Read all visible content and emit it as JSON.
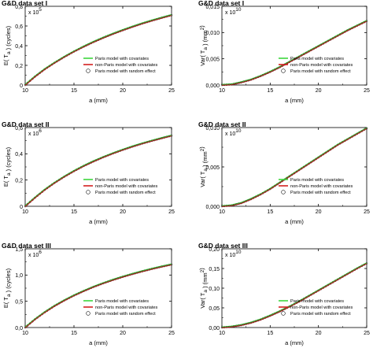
{
  "figure": {
    "legend_labels": [
      "Paris model with covariates",
      "non-Paris model with covariates",
      "Paris model with random effect"
    ],
    "colors": {
      "paris": "#3dd63d",
      "non_paris": "#d42020",
      "random": "#1a1a1a"
    }
  },
  "chart_data": [
    {
      "type": "line",
      "title": "G&D data set I",
      "xlabel": "a  (mm)",
      "ylabel": "E( T_a )  (cycles)",
      "multiplier": "x 10^5",
      "xlim": [
        10,
        25
      ],
      "ylim": [
        0,
        0.8
      ],
      "xticks": [
        "10",
        "15",
        "20",
        "25"
      ],
      "yticks": [
        "0",
        "0,2",
        "0,4",
        "0,6",
        "0,8"
      ],
      "legend": "lower-right",
      "x": [
        10,
        11,
        12,
        13,
        14,
        15,
        16,
        17,
        18,
        19,
        20,
        21,
        22,
        23,
        24,
        25
      ],
      "series": [
        {
          "name": "Paris model with covariates",
          "values": [
            0,
            0.085,
            0.16,
            0.225,
            0.285,
            0.34,
            0.39,
            0.437,
            0.48,
            0.52,
            0.557,
            0.592,
            0.625,
            0.655,
            0.683,
            0.71
          ]
        },
        {
          "name": "non-Paris model with covariates",
          "values": [
            0,
            0.085,
            0.16,
            0.225,
            0.285,
            0.34,
            0.39,
            0.437,
            0.48,
            0.52,
            0.557,
            0.592,
            0.625,
            0.655,
            0.683,
            0.71
          ]
        },
        {
          "name": "Paris model with random effect",
          "values": [
            0,
            0.085,
            0.16,
            0.225,
            0.285,
            0.34,
            0.39,
            0.437,
            0.48,
            0.52,
            0.557,
            0.592,
            0.625,
            0.655,
            0.683,
            0.71
          ]
        }
      ]
    },
    {
      "type": "line",
      "title": "G&D data set I",
      "xlabel": "a  (mm)",
      "ylabel": "Var( T_a )  (mm^2)",
      "multiplier": "x 10^10",
      "xlim": [
        10,
        25
      ],
      "ylim": [
        0,
        0.015
      ],
      "xticks": [
        "10",
        "15",
        "20",
        "25"
      ],
      "yticks": [
        "0,000",
        "0,005",
        "0,010",
        "0,015"
      ],
      "legend": "lower-right",
      "x": [
        10,
        11,
        12,
        13,
        14,
        15,
        16,
        17,
        18,
        19,
        20,
        21,
        22,
        23,
        24,
        25
      ],
      "series": [
        {
          "name": "Paris model with covariates",
          "values": [
            0,
            0.0001,
            0.0005,
            0.001,
            0.0017,
            0.0025,
            0.0034,
            0.0044,
            0.0054,
            0.0064,
            0.0074,
            0.0084,
            0.0094,
            0.0104,
            0.0113,
            0.0122
          ]
        },
        {
          "name": "non-Paris model with covariates",
          "values": [
            0,
            0.0001,
            0.0005,
            0.001,
            0.0017,
            0.0025,
            0.0034,
            0.0044,
            0.0054,
            0.0064,
            0.0074,
            0.0084,
            0.0094,
            0.0104,
            0.0113,
            0.0122
          ]
        },
        {
          "name": "Paris model with random effect",
          "values": [
            0,
            0.0001,
            0.0005,
            0.001,
            0.0017,
            0.0025,
            0.0034,
            0.0044,
            0.0054,
            0.0064,
            0.0074,
            0.0084,
            0.0094,
            0.0104,
            0.0113,
            0.0122
          ]
        }
      ]
    },
    {
      "type": "line",
      "title": "G&D data set II",
      "xlabel": "a  (mm)",
      "ylabel": "E( T_a )  (cycles)",
      "multiplier": "x 10^6",
      "xlim": [
        10,
        25
      ],
      "ylim": [
        0,
        0.6
      ],
      "xticks": [
        "10",
        "15",
        "20",
        "25"
      ],
      "yticks": [
        "0",
        "0,2",
        "0,4",
        "0,6"
      ],
      "legend": "lower-right",
      "x": [
        10,
        11,
        12,
        13,
        14,
        15,
        16,
        17,
        18,
        19,
        20,
        21,
        22,
        23,
        24,
        25
      ],
      "series": [
        {
          "name": "Paris model with covariates",
          "values": [
            0,
            0.065,
            0.125,
            0.178,
            0.225,
            0.268,
            0.307,
            0.342,
            0.374,
            0.403,
            0.43,
            0.455,
            0.478,
            0.499,
            0.519,
            0.538
          ]
        },
        {
          "name": "non-Paris model with covariates",
          "values": [
            0,
            0.065,
            0.125,
            0.178,
            0.225,
            0.268,
            0.307,
            0.342,
            0.374,
            0.403,
            0.43,
            0.455,
            0.478,
            0.499,
            0.519,
            0.538
          ]
        },
        {
          "name": "Paris model with random effect",
          "values": [
            0,
            0.065,
            0.125,
            0.178,
            0.225,
            0.268,
            0.307,
            0.342,
            0.374,
            0.403,
            0.43,
            0.455,
            0.478,
            0.499,
            0.519,
            0.538
          ]
        }
      ]
    },
    {
      "type": "line",
      "title": "G&D data set II",
      "xlabel": "a  (mm)",
      "ylabel": "Var( T_a )  (mm^2)",
      "multiplier": "x 10^10",
      "xlim": [
        10,
        25
      ],
      "ylim": [
        0,
        0.01
      ],
      "xticks": [
        "10",
        "15",
        "20",
        "25"
      ],
      "yticks": [
        "0,000",
        "0,005",
        "0,010"
      ],
      "legend": "lower-right",
      "x": [
        10,
        11,
        12,
        13,
        14,
        15,
        16,
        17,
        18,
        19,
        20,
        21,
        22,
        23,
        24,
        25
      ],
      "series": [
        {
          "name": "Paris model with covariates",
          "values": [
            0,
            0.0001,
            0.0004,
            0.0009,
            0.0015,
            0.0022,
            0.003,
            0.0038,
            0.0046,
            0.0054,
            0.0062,
            0.007,
            0.0078,
            0.0085,
            0.0092,
            0.0099
          ]
        },
        {
          "name": "non-Paris model with covariates",
          "values": [
            0,
            0.0001,
            0.0004,
            0.0009,
            0.0015,
            0.0022,
            0.003,
            0.0038,
            0.0046,
            0.0054,
            0.0062,
            0.007,
            0.0078,
            0.0085,
            0.0092,
            0.0099
          ]
        },
        {
          "name": "Paris model with random effect",
          "values": [
            0,
            0.0001,
            0.0004,
            0.0009,
            0.0015,
            0.0022,
            0.003,
            0.0038,
            0.0046,
            0.0054,
            0.0062,
            0.007,
            0.0078,
            0.0085,
            0.0092,
            0.0099
          ]
        }
      ]
    },
    {
      "type": "line",
      "title": "G&D data set III",
      "xlabel": "a  (mm)",
      "ylabel": "E( T_a )  (cycles)",
      "multiplier": "x 10^6",
      "xlim": [
        10,
        25
      ],
      "ylim": [
        0,
        1.5
      ],
      "xticks": [
        "10",
        "15",
        "20",
        "25"
      ],
      "yticks": [
        "0,0",
        "0,5",
        "1,0",
        "1,5"
      ],
      "legend": "lower-right",
      "x": [
        10,
        11,
        12,
        13,
        14,
        15,
        16,
        17,
        18,
        19,
        20,
        21,
        22,
        23,
        24,
        25
      ],
      "series": [
        {
          "name": "Paris model with covariates",
          "values": [
            0,
            0.155,
            0.29,
            0.41,
            0.515,
            0.61,
            0.695,
            0.773,
            0.843,
            0.907,
            0.966,
            1.02,
            1.07,
            1.117,
            1.16,
            1.2
          ]
        },
        {
          "name": "non-Paris model with covariates",
          "values": [
            0,
            0.155,
            0.29,
            0.41,
            0.515,
            0.61,
            0.695,
            0.773,
            0.843,
            0.907,
            0.966,
            1.02,
            1.07,
            1.117,
            1.16,
            1.2
          ]
        },
        {
          "name": "Paris model with random effect",
          "values": [
            0,
            0.155,
            0.29,
            0.41,
            0.515,
            0.61,
            0.695,
            0.773,
            0.843,
            0.907,
            0.966,
            1.02,
            1.07,
            1.117,
            1.16,
            1.2
          ]
        }
      ]
    },
    {
      "type": "line",
      "title": "G&D data set III",
      "xlabel": "a  (mm)",
      "ylabel": "Var( T_a )  (mm^2)",
      "multiplier": "x 10^10",
      "xlim": [
        10,
        25
      ],
      "ylim": [
        0,
        0.2
      ],
      "xticks": [
        "10",
        "15",
        "20",
        "25"
      ],
      "yticks": [
        "0,00",
        "0,05",
        "0,10",
        "0,15",
        "0,20"
      ],
      "legend": "lower-right",
      "x": [
        10,
        11,
        12,
        13,
        14,
        15,
        16,
        17,
        18,
        19,
        20,
        21,
        22,
        23,
        24,
        25
      ],
      "series": [
        {
          "name": "Paris model with covariates",
          "values": [
            0,
            0.002,
            0.006,
            0.012,
            0.02,
            0.03,
            0.041,
            0.053,
            0.066,
            0.08,
            0.094,
            0.108,
            0.122,
            0.136,
            0.15,
            0.163
          ]
        },
        {
          "name": "non-Paris model with covariates",
          "values": [
            0,
            0.002,
            0.006,
            0.012,
            0.02,
            0.03,
            0.041,
            0.053,
            0.066,
            0.08,
            0.094,
            0.108,
            0.122,
            0.136,
            0.15,
            0.163
          ]
        },
        {
          "name": "Paris model with random effect",
          "values": [
            0,
            0.002,
            0.006,
            0.012,
            0.02,
            0.03,
            0.041,
            0.053,
            0.066,
            0.08,
            0.094,
            0.108,
            0.122,
            0.136,
            0.15,
            0.163
          ]
        }
      ]
    }
  ]
}
